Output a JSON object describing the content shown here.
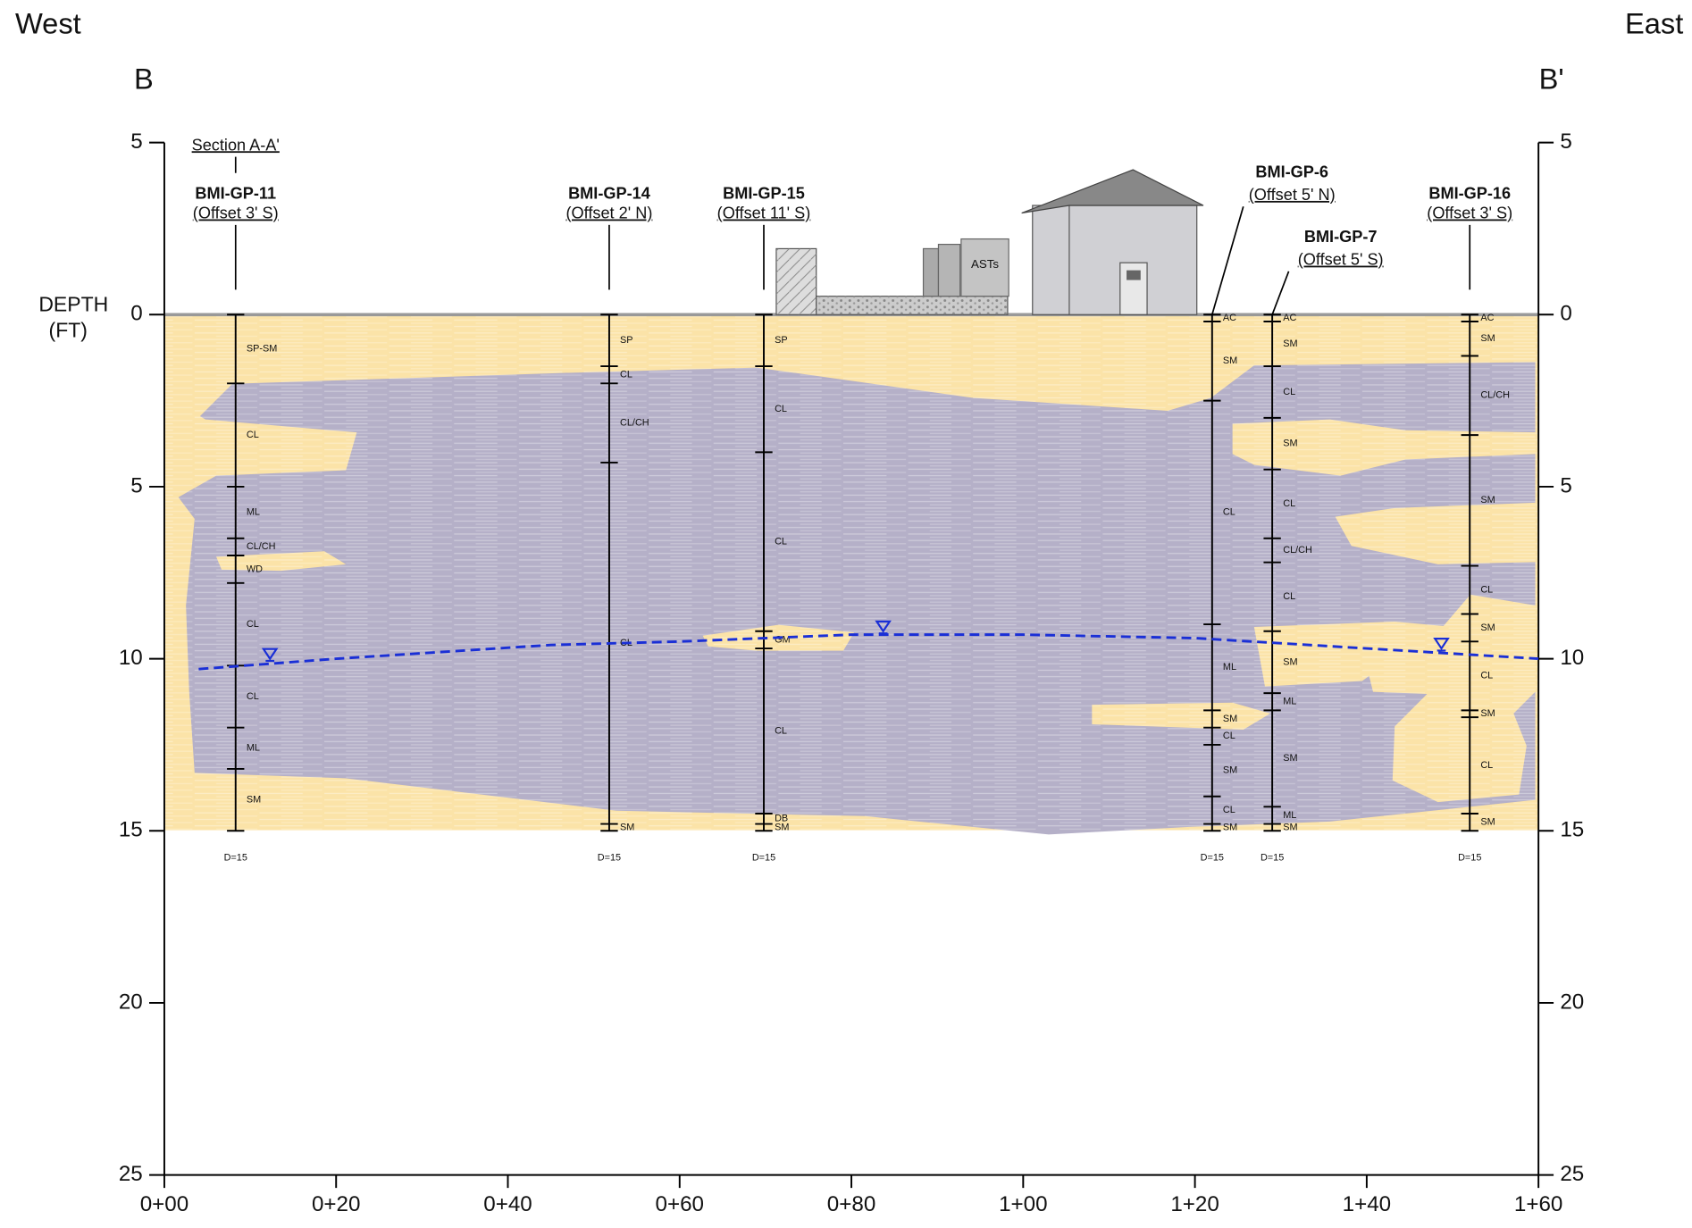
{
  "header": {
    "west": "West",
    "east": "East",
    "left_section": "B",
    "right_section": "B'",
    "depth_label": "DEPTH",
    "depth_unit": "(FT)"
  },
  "axes": {
    "xlim": [
      0,
      160
    ],
    "ylim": [
      -5,
      25
    ],
    "xticks": [
      {
        "value": 0,
        "label": "0+00"
      },
      {
        "value": 20,
        "label": "0+20"
      },
      {
        "value": 40,
        "label": "0+40"
      },
      {
        "value": 60,
        "label": "0+60"
      },
      {
        "value": 80,
        "label": "0+80"
      },
      {
        "value": 100,
        "label": "1+00"
      },
      {
        "value": 120,
        "label": "1+20"
      },
      {
        "value": 140,
        "label": "1+40"
      },
      {
        "value": 160,
        "label": "1+60"
      }
    ],
    "yticks": [
      {
        "value": -5,
        "label": "5"
      },
      0,
      5,
      10,
      15,
      20,
      25
    ]
  },
  "features": {
    "section_ref": "Section A-A'",
    "tanks": "ASTs"
  },
  "borings": [
    {
      "name": "BMI-GP-11",
      "offset": "(Offset 3' S)",
      "station": 8.3,
      "total_depth_label": "D=15",
      "layers": [
        {
          "soil": "SP-SM",
          "top": 0,
          "bottom": 2
        },
        {
          "soil": "CL",
          "top": 2,
          "bottom": 5
        },
        {
          "soil": "ML",
          "top": 5,
          "bottom": 6.5
        },
        {
          "soil": "CL/CH",
          "top": 6.5,
          "bottom": 7
        },
        {
          "soil": "WD",
          "top": 7,
          "bottom": 7.8
        },
        {
          "soil": "CL",
          "top": 7.8,
          "bottom": 10.2
        },
        {
          "soil": "CL",
          "top": 10.2,
          "bottom": 12
        },
        {
          "soil": "ML",
          "top": 12,
          "bottom": 13.2
        },
        {
          "soil": "SM",
          "top": 13.2,
          "bottom": 15
        }
      ]
    },
    {
      "name": "BMI-GP-14",
      "offset": "(Offset 2' N)",
      "station": 51.8,
      "total_depth_label": "D=15",
      "layers": [
        {
          "soil": "SP",
          "top": 0,
          "bottom": 1.5
        },
        {
          "soil": "CL",
          "top": 1.5,
          "bottom": 2
        },
        {
          "soil": "CL/CH",
          "top": 2,
          "bottom": 4.3
        },
        {
          "soil": "CL",
          "top": 4.3,
          "bottom": 14.8
        },
        {
          "soil": "SM",
          "top": 14.8,
          "bottom": 15
        }
      ]
    },
    {
      "name": "BMI-GP-15",
      "offset": "(Offset 11' S)",
      "station": 69.8,
      "total_depth_label": "D=15",
      "layers": [
        {
          "soil": "SP",
          "top": 0,
          "bottom": 1.5
        },
        {
          "soil": "CL",
          "top": 1.5,
          "bottom": 4
        },
        {
          "soil": "CL",
          "top": 4,
          "bottom": 9.2
        },
        {
          "soil": "GM",
          "top": 9.2,
          "bottom": 9.7
        },
        {
          "soil": "CL",
          "top": 9.7,
          "bottom": 14.5
        },
        {
          "soil": "DB",
          "top": 14.5,
          "bottom": 14.8
        },
        {
          "soil": "SM",
          "top": 14.8,
          "bottom": 15
        }
      ]
    },
    {
      "name": "BMI-GP-6",
      "offset": "(Offset 5' N)",
      "station": 122,
      "total_depth_label": "D=15",
      "layers": [
        {
          "soil": "AC",
          "top": 0,
          "bottom": 0.2
        },
        {
          "soil": "SM",
          "top": 0.2,
          "bottom": 2.5
        },
        {
          "soil": "CL",
          "top": 2.5,
          "bottom": 9
        },
        {
          "soil": "ML",
          "top": 9,
          "bottom": 11.5
        },
        {
          "soil": "SM",
          "top": 11.5,
          "bottom": 12
        },
        {
          "soil": "CL",
          "top": 12,
          "bottom": 12.5
        },
        {
          "soil": "SM",
          "top": 12.5,
          "bottom": 14
        },
        {
          "soil": "CL",
          "top": 14,
          "bottom": 14.8
        },
        {
          "soil": "SM",
          "top": 14.8,
          "bottom": 15
        }
      ]
    },
    {
      "name": "BMI-GP-7",
      "offset": "(Offset 5' S)",
      "station": 129,
      "total_depth_label": "D=15",
      "layers": [
        {
          "soil": "AC",
          "top": 0,
          "bottom": 0.2
        },
        {
          "soil": "SM",
          "top": 0.2,
          "bottom": 1.5
        },
        {
          "soil": "CL",
          "top": 1.5,
          "bottom": 3
        },
        {
          "soil": "SM",
          "top": 3,
          "bottom": 4.5
        },
        {
          "soil": "CL",
          "top": 4.5,
          "bottom": 6.5
        },
        {
          "soil": "CL/CH",
          "top": 6.5,
          "bottom": 7.2
        },
        {
          "soil": "CL",
          "top": 7.2,
          "bottom": 9.2
        },
        {
          "soil": "SM",
          "top": 9.2,
          "bottom": 11
        },
        {
          "soil": "ML",
          "top": 11,
          "bottom": 11.5
        },
        {
          "soil": "SM",
          "top": 11.5,
          "bottom": 14.3
        },
        {
          "soil": "ML",
          "top": 14.3,
          "bottom": 14.8
        },
        {
          "soil": "SM",
          "top": 14.8,
          "bottom": 15
        }
      ]
    },
    {
      "name": "BMI-GP-16",
      "offset": "(Offset 3' S)",
      "station": 152,
      "total_depth_label": "D=15",
      "layers": [
        {
          "soil": "AC",
          "top": 0,
          "bottom": 0.2
        },
        {
          "soil": "SM",
          "top": 0.2,
          "bottom": 1.2
        },
        {
          "soil": "CL/CH",
          "top": 1.2,
          "bottom": 3.5
        },
        {
          "soil": "SM",
          "top": 3.5,
          "bottom": 7.3
        },
        {
          "soil": "CL",
          "top": 7.3,
          "bottom": 8.7
        },
        {
          "soil": "SM",
          "top": 8.7,
          "bottom": 9.5
        },
        {
          "soil": "CL",
          "top": 9.5,
          "bottom": 11.5
        },
        {
          "soil": "SM",
          "top": 11.5,
          "bottom": 11.7
        },
        {
          "soil": "CL",
          "top": 11.7,
          "bottom": 14.5
        },
        {
          "soil": "SM",
          "top": 14.5,
          "bottom": 15
        }
      ]
    }
  ],
  "water_table": {
    "points": [
      {
        "station": 4,
        "depth": 10.3
      },
      {
        "station": 20,
        "depth": 10
      },
      {
        "station": 45,
        "depth": 9.6
      },
      {
        "station": 60,
        "depth": 9.5
      },
      {
        "station": 80,
        "depth": 9.3
      },
      {
        "station": 100,
        "depth": 9.3
      },
      {
        "station": 120,
        "depth": 9.4
      },
      {
        "station": 140,
        "depth": 9.7
      },
      {
        "station": 160,
        "depth": 10
      }
    ],
    "symbols": [
      {
        "station": 12.3,
        "depth": 10
      },
      {
        "station": 83.7,
        "depth": 9.2
      },
      {
        "station": 148.7,
        "depth": 9.7
      }
    ]
  }
}
